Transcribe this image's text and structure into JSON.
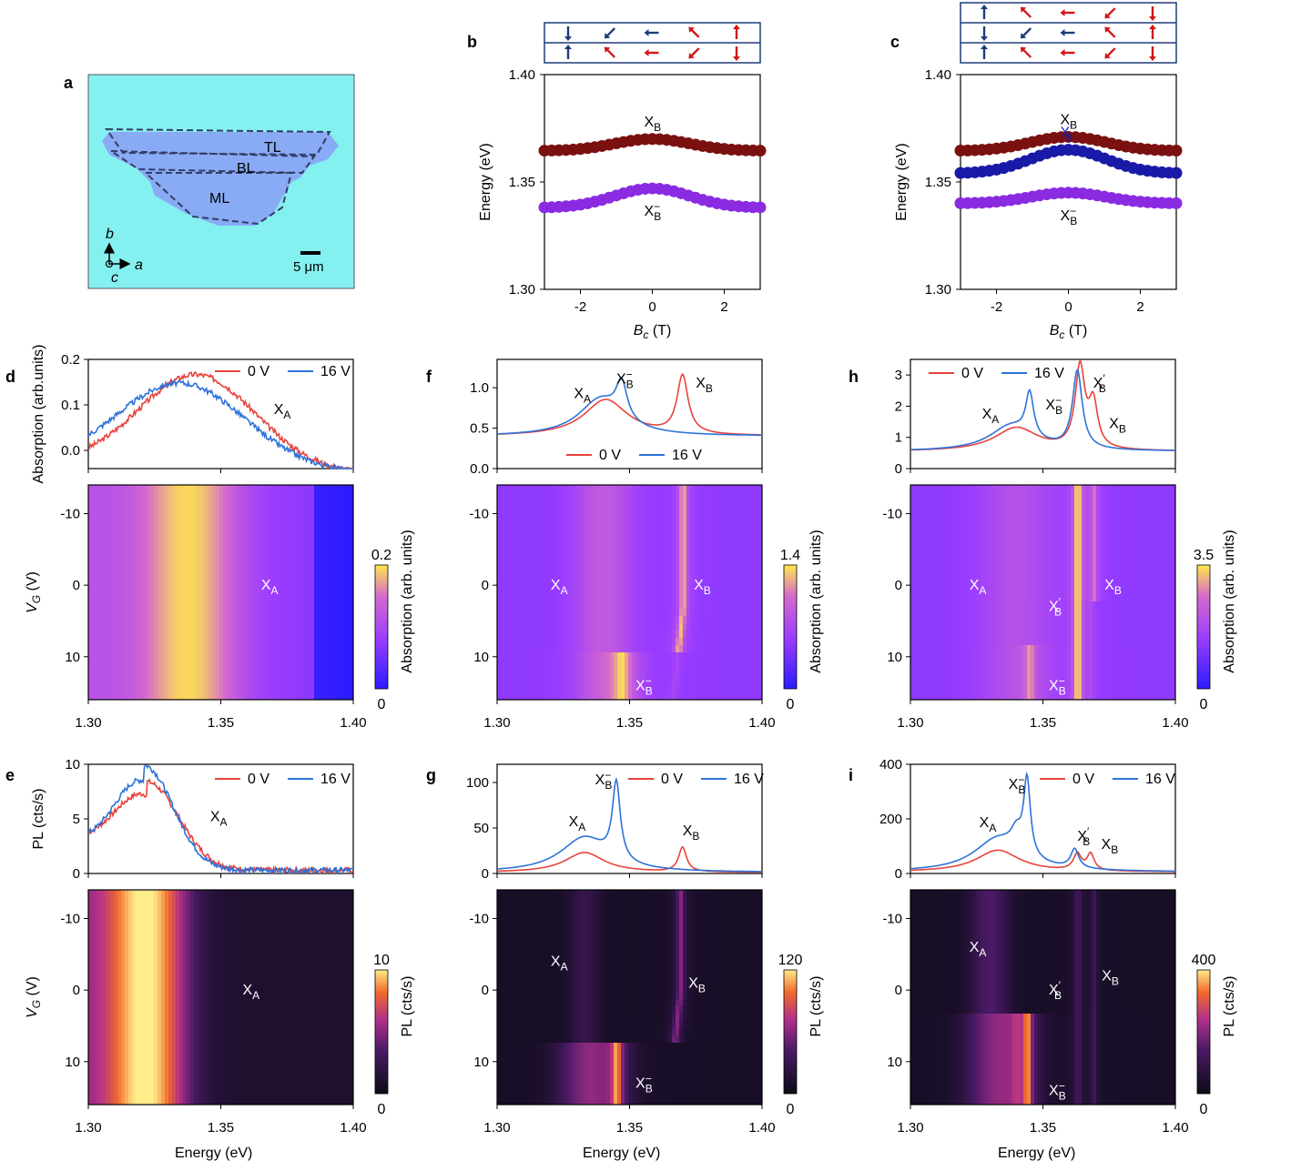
{
  "figure": {
    "panel_labels": [
      "a",
      "b",
      "c",
      "d",
      "e",
      "f",
      "g",
      "h",
      "i"
    ],
    "microscope": {
      "regions": [
        "TL",
        "BL",
        "ML"
      ],
      "axes": {
        "vertical": "b",
        "horizontal": "a",
        "outofplane": "c"
      },
      "scalebar": "5 μm",
      "colors": {
        "background": "#84f0ef",
        "flake": "#8a9ef5"
      }
    },
    "energy_ticks": [
      "1.30",
      "1.35",
      "1.40"
    ],
    "energy_label": "Energy (eV)",
    "vg_ticks": [
      "-10",
      "0",
      "10"
    ],
    "vg_label": "VG (V)",
    "legend": {
      "zero": "0 V",
      "sixteen": "16 V",
      "colors": {
        "zero": "#e8423c",
        "sixteen": "#2e72d8"
      }
    },
    "colorbar": {
      "absorption_label": "Absorption (arb. units)",
      "pl_label": "PL (cts/s)",
      "absorption_colors": [
        "#2b1cff",
        "#9a3cff",
        "#d66acc",
        "#ffe94a"
      ],
      "pl_colors": [
        "#0b0b16",
        "#4a1a66",
        "#b0308a",
        "#f26a2a",
        "#ffec8a"
      ]
    }
  },
  "chart_data": [
    {
      "id": "b",
      "type": "scatter",
      "title": "",
      "xlabel": "Bc (T)",
      "ylabel": "Energy (eV)",
      "xlim": [
        -3,
        3
      ],
      "ylim": [
        1.3,
        1.4
      ],
      "xticks": [
        "-2",
        "0",
        "2"
      ],
      "yticks": [
        "1.30",
        "1.35",
        "1.40"
      ],
      "series": [
        {
          "name": "XB",
          "color": "#7a1010",
          "center": 1.37,
          "edge": 1.3645,
          "ann": "X",
          "sub": "B"
        },
        {
          "name": "XB-",
          "color": "#8a2be2",
          "center": 1.347,
          "edge": 1.338,
          "ann": "X",
          "sub": "B",
          "sup": "−"
        }
      ],
      "spin_diagram": {
        "layers": 2,
        "colors": {
          "down": "#1e3c78",
          "up": "#d01818"
        }
      }
    },
    {
      "id": "c",
      "type": "scatter",
      "title": "",
      "xlabel": "Bc (T)",
      "ylabel": "Energy (eV)",
      "xlim": [
        -3,
        3
      ],
      "ylim": [
        1.3,
        1.4
      ],
      "xticks": [
        "-2",
        "0",
        "2"
      ],
      "yticks": [
        "1.30",
        "1.35",
        "1.40"
      ],
      "series": [
        {
          "name": "XB",
          "color": "#7a1010",
          "center": 1.371,
          "edge": 1.3645,
          "ann": "X",
          "sub": "B"
        },
        {
          "name": "XB'",
          "color": "#1a1aa8",
          "center": 1.365,
          "edge": 1.354,
          "ann": "X",
          "sub": "B",
          "sup": "′"
        },
        {
          "name": "XB-",
          "color": "#8a2be2",
          "center": 1.345,
          "edge": 1.34,
          "ann": "X",
          "sub": "B",
          "sup": "−"
        }
      ],
      "spin_diagram": {
        "layers": 3,
        "colors": {
          "down": "#1e3c78",
          "up": "#d01818"
        }
      }
    },
    {
      "id": "d",
      "type": "line",
      "ylabel": "Absorption (arb.units)",
      "yticks": [
        "0.0",
        "0.1",
        "0.2"
      ],
      "ylim": [
        -0.04,
        0.2
      ],
      "xlim": [
        1.3,
        1.4
      ],
      "series": [
        {
          "name": "0 V",
          "peaks": [
            {
              "c": 1.341,
              "w": 0.022,
              "a": 0.205
            }
          ],
          "base": -0.03
        },
        {
          "name": "16 V",
          "peaks": [
            {
              "c": 1.335,
              "w": 0.024,
              "a": 0.185
            }
          ],
          "base": -0.03
        }
      ],
      "annotations": [
        {
          "text": "X",
          "sub": "A",
          "x": 1.37,
          "y": 0.08
        }
      ]
    },
    {
      "id": "d-map",
      "type": "heatmap",
      "ylim": [
        -14,
        16
      ],
      "cbar_max": "0.2",
      "cbar_min": "0",
      "annotations": [
        {
          "text": "X",
          "sub": "A",
          "x": 1.368,
          "y": 0
        }
      ]
    },
    {
      "id": "e",
      "type": "line",
      "ylabel": "PL (cts/s)",
      "yticks": [
        "0",
        "5",
        "10"
      ],
      "ylim": [
        0,
        10
      ],
      "xlim": [
        1.3,
        1.4
      ],
      "series": [
        {
          "name": "0 V",
          "peaks": [
            {
              "c": 1.322,
              "w": 0.012,
              "a": 8.1
            }
          ],
          "base": 0.3
        },
        {
          "name": "16 V",
          "peaks": [
            {
              "c": 1.321,
              "w": 0.011,
              "a": 9.6
            }
          ],
          "base": 0.3
        }
      ],
      "annotations": [
        {
          "text": "X",
          "sub": "A",
          "x": 1.346,
          "y": 4.8
        }
      ]
    },
    {
      "id": "e-map",
      "type": "heatmap",
      "ylim": [
        -14,
        16
      ],
      "cbar_max": "10",
      "cbar_min": "0",
      "annotations": [
        {
          "text": "X",
          "sub": "A",
          "x": 1.361,
          "y": 0
        }
      ]
    },
    {
      "id": "f",
      "type": "line",
      "yticks": [
        "0.0",
        "0.5",
        "1.0"
      ],
      "ylim": [
        0,
        1.35
      ],
      "xlim": [
        1.3,
        1.4
      ],
      "series": [
        {
          "name": "0 V",
          "peaks": [
            {
              "c": 1.341,
              "w": 0.01,
              "a": 0.45
            },
            {
              "c": 1.37,
              "w": 0.0025,
              "a": 0.72
            }
          ],
          "base": 0.4
        },
        {
          "name": "16 V",
          "peaks": [
            {
              "c": 1.339,
              "w": 0.01,
              "a": 0.45
            },
            {
              "c": 1.347,
              "w": 0.0025,
              "a": 0.45
            }
          ],
          "base": 0.4
        }
      ],
      "annotations": [
        {
          "text": "X",
          "sub": "A",
          "x": 1.329,
          "y": 0.87
        },
        {
          "text": "X",
          "sub": "B",
          "sup": "−",
          "x": 1.345,
          "y": 1.05
        },
        {
          "text": "X",
          "sub": "B",
          "x": 1.375,
          "y": 1.0
        }
      ]
    },
    {
      "id": "f-map",
      "type": "heatmap",
      "ylim": [
        -14,
        16
      ],
      "cbar_max": "1.4",
      "cbar_min": "0",
      "annotations": [
        {
          "text": "X",
          "sub": "A",
          "x": 1.323,
          "y": 0
        },
        {
          "text": "X",
          "sub": "B",
          "x": 1.377,
          "y": 0
        },
        {
          "text": "X",
          "sub": "B",
          "sup": "−",
          "x": 1.355,
          "y": 14
        }
      ]
    },
    {
      "id": "g",
      "type": "line",
      "yticks": [
        "0",
        "50",
        "100"
      ],
      "ylim": [
        0,
        120
      ],
      "xlim": [
        1.3,
        1.4
      ],
      "series": [
        {
          "name": "0 V",
          "peaks": [
            {
              "c": 1.333,
              "w": 0.009,
              "a": 22
            },
            {
              "c": 1.37,
              "w": 0.0018,
              "a": 27
            }
          ],
          "base": 1
        },
        {
          "name": "16 V",
          "peaks": [
            {
              "c": 1.333,
              "w": 0.011,
              "a": 38
            },
            {
              "c": 1.345,
              "w": 0.0018,
              "a": 85
            }
          ],
          "base": 1
        }
      ],
      "annotations": [
        {
          "text": "X",
          "sub": "A",
          "x": 1.327,
          "y": 52
        },
        {
          "text": "X",
          "sub": "B",
          "sup": "−",
          "x": 1.337,
          "y": 98
        },
        {
          "text": "X",
          "sub": "B",
          "x": 1.37,
          "y": 42
        }
      ]
    },
    {
      "id": "g-map",
      "type": "heatmap",
      "ylim": [
        -14,
        16
      ],
      "cbar_max": "120",
      "cbar_min": "0",
      "annotations": [
        {
          "text": "X",
          "sub": "A",
          "x": 1.323,
          "y": -4
        },
        {
          "text": "X",
          "sub": "B",
          "x": 1.375,
          "y": -1
        },
        {
          "text": "X",
          "sub": "B",
          "sup": "−",
          "x": 1.355,
          "y": 13
        }
      ]
    },
    {
      "id": "h",
      "type": "line",
      "yticks": [
        "0",
        "1",
        "2",
        "3"
      ],
      "ylim": [
        0,
        3.5
      ],
      "xlim": [
        1.3,
        1.4
      ],
      "series": [
        {
          "name": "0 V",
          "peaks": [
            {
              "c": 1.34,
              "w": 0.01,
              "a": 0.75
            },
            {
              "c": 1.364,
              "w": 0.0022,
              "a": 2.6
            },
            {
              "c": 1.369,
              "w": 0.002,
              "a": 1.4
            }
          ],
          "base": 0.55
        },
        {
          "name": "16 V",
          "peaks": [
            {
              "c": 1.338,
              "w": 0.01,
              "a": 0.8
            },
            {
              "c": 1.345,
              "w": 0.0018,
              "a": 1.4
            },
            {
              "c": 1.363,
              "w": 0.0022,
              "a": 2.5
            }
          ],
          "base": 0.55
        }
      ],
      "annotations": [
        {
          "text": "X",
          "sub": "A",
          "x": 1.327,
          "y": 1.6
        },
        {
          "text": "X",
          "sub": "B",
          "sup": "−",
          "x": 1.351,
          "y": 1.9
        },
        {
          "text": "X",
          "sub": "B",
          "sup": "′",
          "x": 1.369,
          "y": 2.6
        },
        {
          "text": "X",
          "sub": "B",
          "x": 1.375,
          "y": 1.3
        }
      ]
    },
    {
      "id": "h-map",
      "type": "heatmap",
      "ylim": [
        -14,
        16
      ],
      "cbar_max": "3.5",
      "cbar_min": "0",
      "annotations": [
        {
          "text": "X",
          "sub": "A",
          "x": 1.325,
          "y": 0
        },
        {
          "text": "X",
          "sub": "B",
          "x": 1.376,
          "y": 0
        },
        {
          "text": "X",
          "sub": "B",
          "sup": "′",
          "x": 1.355,
          "y": 3
        },
        {
          "text": "X",
          "sub": "B",
          "sup": "−",
          "x": 1.355,
          "y": 14
        }
      ]
    },
    {
      "id": "i",
      "type": "line",
      "yticks": [
        "0",
        "200",
        "400"
      ],
      "ylim": [
        0,
        400
      ],
      "xlim": [
        1.3,
        1.4
      ],
      "series": [
        {
          "name": "0 V",
          "peaks": [
            {
              "c": 1.333,
              "w": 0.01,
              "a": 80
            },
            {
              "c": 1.363,
              "w": 0.0018,
              "a": 60
            },
            {
              "c": 1.368,
              "w": 0.0016,
              "a": 60
            }
          ],
          "base": 5
        },
        {
          "name": "16 V",
          "peaks": [
            {
              "c": 1.333,
              "w": 0.011,
              "a": 120
            },
            {
              "c": 1.34,
              "w": 0.0025,
              "a": 70
            },
            {
              "c": 1.344,
              "w": 0.0015,
              "a": 280
            },
            {
              "c": 1.362,
              "w": 0.0018,
              "a": 70
            }
          ],
          "base": 5
        }
      ],
      "annotations": [
        {
          "text": "X",
          "sub": "A",
          "x": 1.326,
          "y": 170
        },
        {
          "text": "X",
          "sub": "B",
          "sup": "−",
          "x": 1.337,
          "y": 310
        },
        {
          "text": "X",
          "sub": "B",
          "sup": "′",
          "x": 1.363,
          "y": 120
        },
        {
          "text": "X",
          "sub": "B",
          "x": 1.372,
          "y": 90
        }
      ]
    },
    {
      "id": "i-map",
      "type": "heatmap",
      "ylim": [
        -14,
        16
      ],
      "cbar_max": "400",
      "cbar_min": "0",
      "annotations": [
        {
          "text": "X",
          "sub": "A",
          "x": 1.325,
          "y": -6
        },
        {
          "text": "X",
          "sub": "B",
          "x": 1.375,
          "y": -2
        },
        {
          "text": "X",
          "sub": "B",
          "sup": "′",
          "x": 1.355,
          "y": 0
        },
        {
          "text": "X",
          "sub": "B",
          "sup": "−",
          "x": 1.355,
          "y": 14
        }
      ]
    }
  ]
}
